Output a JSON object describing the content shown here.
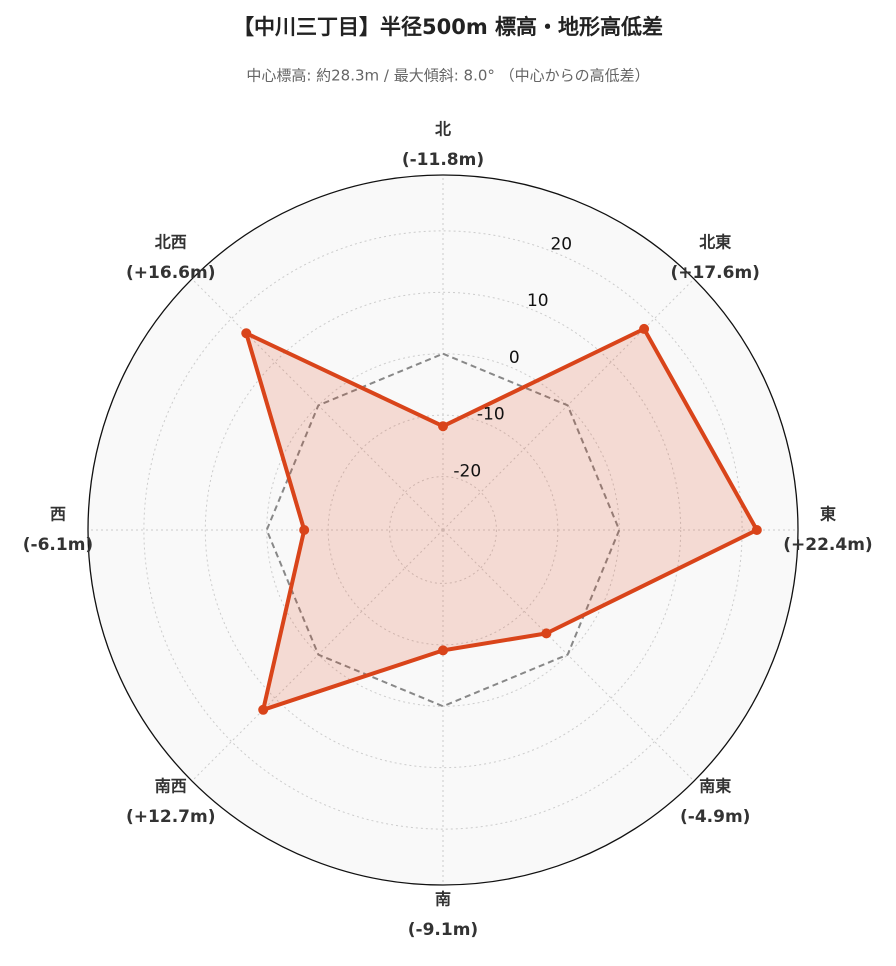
{
  "chart_data": {
    "type": "radar",
    "title": "【中川三丁目】半径500m 標高・地形高低差",
    "subtitle": "中心標高: 約28.3m / 最大傾斜: 8.0° （中心からの高低差）",
    "categories": [
      "北",
      "北東",
      "東",
      "南東",
      "南",
      "南西",
      "西",
      "北西"
    ],
    "values": [
      -11.8,
      17.6,
      22.4,
      -4.9,
      -9.1,
      12.7,
      -6.1,
      16.6
    ],
    "value_labels": [
      "(-11.8m)",
      "(+17.6m)",
      "(+22.4m)",
      "(-4.9m)",
      "(-9.1m)",
      "(+12.7m)",
      "(-6.1m)",
      "(+16.6m)"
    ],
    "color": "#d9441a",
    "reference_values": [
      0,
      0,
      0,
      0,
      0,
      0,
      0,
      0
    ],
    "rlim": [
      -28.7,
      29.1
    ],
    "rticks": [
      -20,
      -10,
      0,
      10,
      20
    ],
    "grid": true
  }
}
